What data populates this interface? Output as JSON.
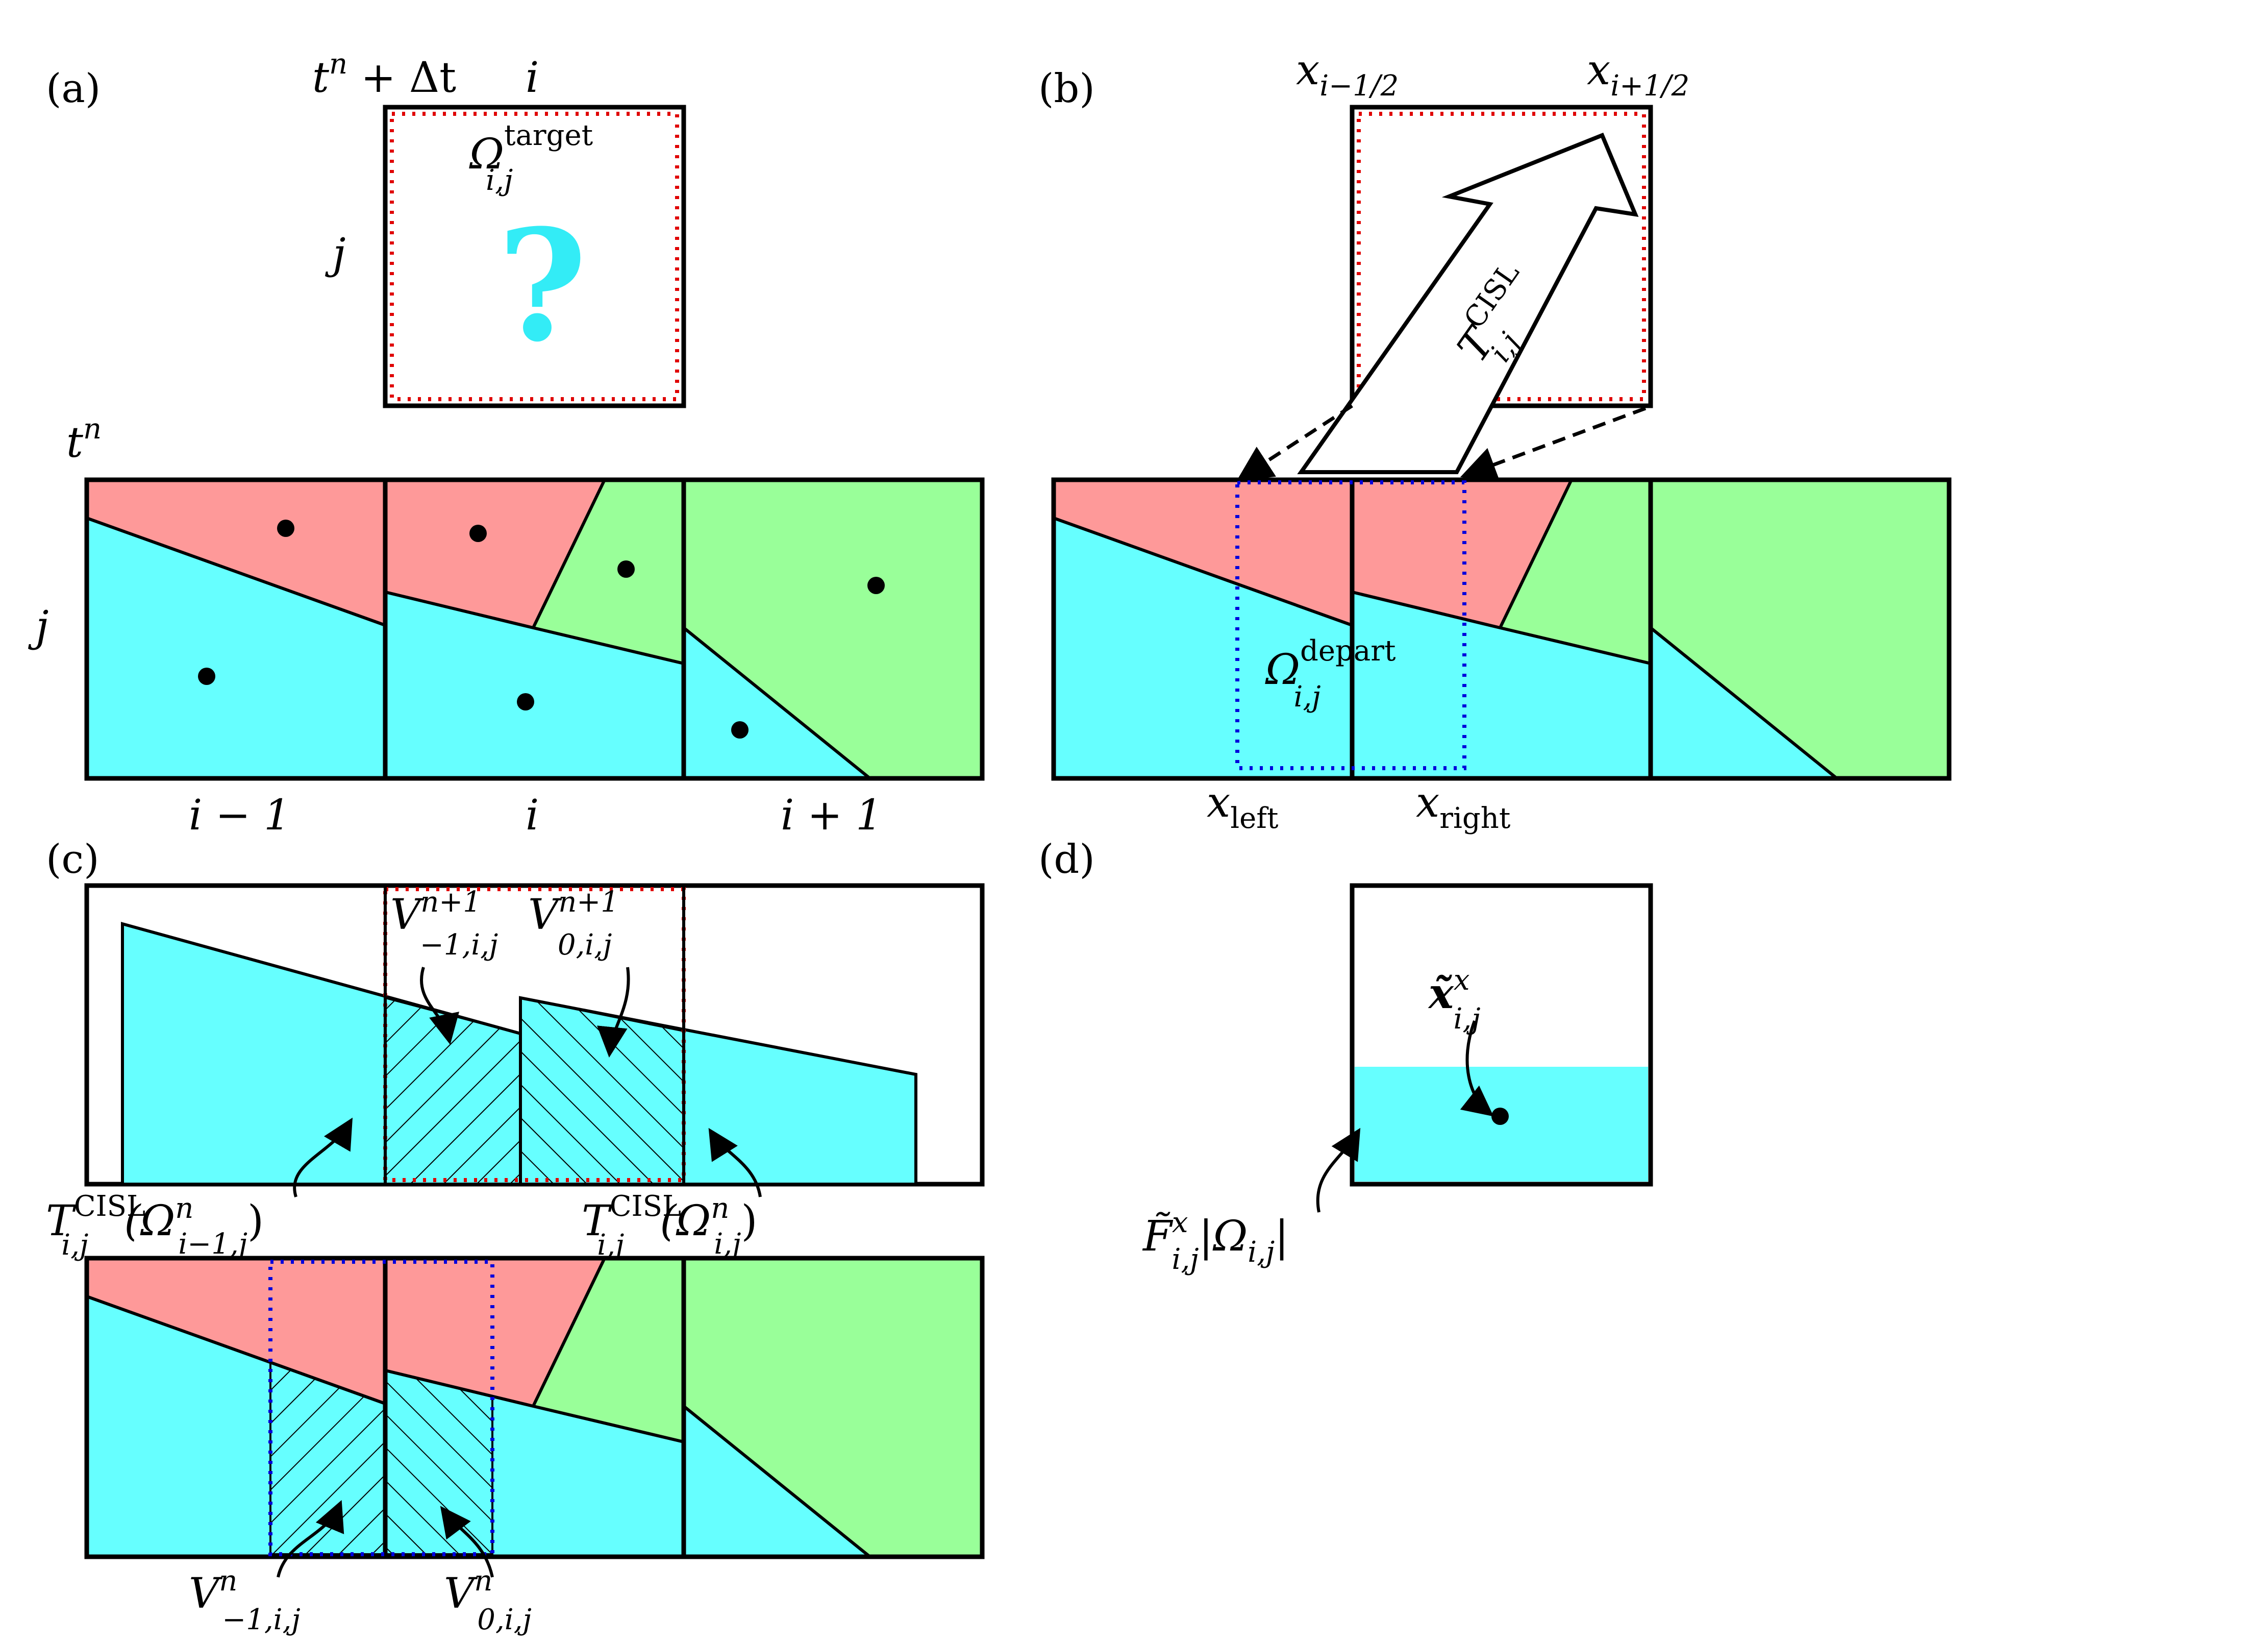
{
  "colors": {
    "red_phase": "#fe9999",
    "cyan_phase": "#66ffff",
    "green_phase": "#99ff99",
    "target_outline": "#e00000",
    "departure_outline": "#0000dd",
    "question_mark": "#33ecf6",
    "line": "#000000",
    "background": "#ffffff"
  },
  "panel_a": {
    "label": "(a)",
    "time_new": {
      "base": "t",
      "sup": "n",
      "rest": " + Δt"
    },
    "col_label_top": "i",
    "row_label_top": "j",
    "target": {
      "base": "Ω",
      "sup": "target",
      "sub": "i,j"
    },
    "question": "?",
    "time_old": {
      "base": "t",
      "sup": "n"
    },
    "row_label_grid": "j",
    "col_labels": [
      "i − 1",
      "i",
      "i + 1"
    ]
  },
  "panel_b": {
    "label": "(b)",
    "face_left": {
      "base": "x",
      "sub": "i−1/2"
    },
    "face_right": {
      "base": "x",
      "sub": "i+1/2"
    },
    "transform": {
      "base": "T",
      "sup": "CISL",
      "sub": "i,j"
    },
    "departure": {
      "base": "Ω",
      "sup": "depart",
      "sub": "i,j"
    },
    "x_left": {
      "base": "x",
      "sub": "left"
    },
    "x_right": {
      "base": "x",
      "sub": "right"
    }
  },
  "panel_c": {
    "label": "(c)",
    "v_new_left": {
      "base": "V",
      "sup": "n+1",
      "sub": "−1,i,j"
    },
    "v_new_right": {
      "base": "V",
      "sup": "n+1",
      "sub": "0,i,j"
    },
    "mapped_left": {
      "base": "T",
      "sup": "CISL",
      "sub": "i,j",
      "arg_base": "(Ω",
      "arg_sup": "n",
      "arg_sub": "i−1,j",
      "arg_close": ")"
    },
    "mapped_right": {
      "base": "T",
      "sup": "CISL",
      "sub": "i,j",
      "arg_base": "(Ω",
      "arg_sup": "n",
      "arg_sub": "i,j",
      "arg_close": ")"
    },
    "v_old_left": {
      "base": "V",
      "sup": "n",
      "sub": "−1,i,j"
    },
    "v_old_right": {
      "base": "V",
      "sup": "n",
      "sub": "0,i,j"
    }
  },
  "panel_d": {
    "label": "(d)",
    "centroid": {
      "base": "x̃",
      "sup": "x",
      "sub": "i,j"
    },
    "flux": {
      "base": "F̃",
      "sup": "x",
      "sub": "i,j",
      "rest": "|Ω",
      "rest_sub": "i,j",
      "rest_close": "|"
    }
  }
}
